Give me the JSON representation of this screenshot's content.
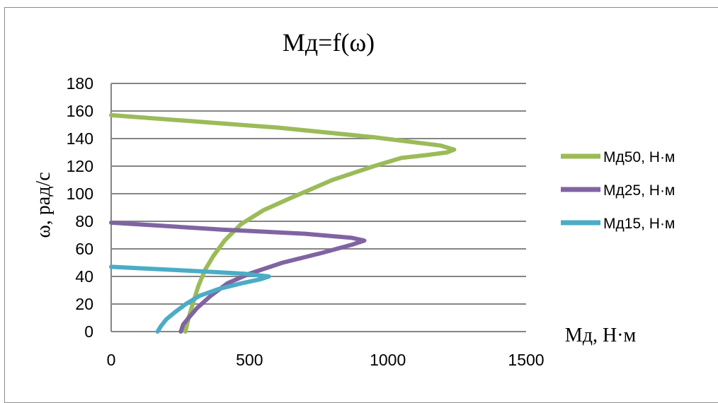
{
  "chart_data": {
    "type": "line",
    "title": "Мд=f(ω)",
    "xlabel": "Мд, Н·м",
    "ylabel": "ω, рад/с",
    "xlim": [
      0,
      1500
    ],
    "ylim": [
      0,
      180
    ],
    "xticks": [
      "0",
      "500",
      "1000",
      "1500"
    ],
    "yticks": [
      "0",
      "20",
      "40",
      "60",
      "80",
      "100",
      "120",
      "140",
      "160",
      "180"
    ],
    "grid": "horizontal",
    "legend_position": "right",
    "series": [
      {
        "name": "Мд50, Н·м",
        "color": "#9bbb59",
        "points": [
          [
            0,
            157
          ],
          [
            600,
            148
          ],
          [
            950,
            141
          ],
          [
            1190,
            135
          ],
          [
            1240,
            132
          ],
          [
            1215,
            130
          ],
          [
            1140,
            128
          ],
          [
            1050,
            126
          ],
          [
            950,
            120
          ],
          [
            800,
            110
          ],
          [
            650,
            97
          ],
          [
            550,
            88
          ],
          [
            470,
            78
          ],
          [
            410,
            66
          ],
          [
            370,
            55
          ],
          [
            340,
            45
          ],
          [
            315,
            33
          ],
          [
            295,
            20
          ],
          [
            280,
            10
          ],
          [
            268,
            0
          ]
        ]
      },
      {
        "name": "Мд25, Н·м",
        "color": "#8064a2",
        "points": [
          [
            0,
            79
          ],
          [
            400,
            74
          ],
          [
            700,
            71
          ],
          [
            870,
            68
          ],
          [
            915,
            66
          ],
          [
            870,
            63
          ],
          [
            760,
            57
          ],
          [
            620,
            50
          ],
          [
            500,
            42
          ],
          [
            420,
            35
          ],
          [
            360,
            26
          ],
          [
            310,
            17
          ],
          [
            280,
            10
          ],
          [
            260,
            5
          ],
          [
            252,
            0
          ]
        ]
      },
      {
        "name": "Мд15, Н·м",
        "color": "#4bacc6",
        "points": [
          [
            0,
            47
          ],
          [
            300,
            44
          ],
          [
            480,
            42
          ],
          [
            570,
            40
          ],
          [
            540,
            38
          ],
          [
            470,
            35
          ],
          [
            390,
            31
          ],
          [
            320,
            26
          ],
          [
            270,
            20
          ],
          [
            230,
            14
          ],
          [
            200,
            9
          ],
          [
            180,
            4
          ],
          [
            168,
            0
          ]
        ]
      }
    ]
  }
}
